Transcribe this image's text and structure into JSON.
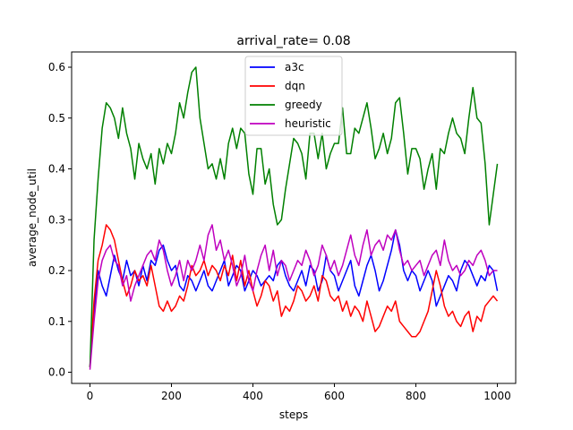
{
  "chart_data": {
    "type": "line",
    "title": "arrival_rate= 0.08",
    "xlabel": "steps",
    "ylabel": "average_node_util",
    "xlim": [
      -45,
      1045
    ],
    "ylim": [
      -0.022,
      0.63
    ],
    "xticks": [
      0,
      200,
      400,
      600,
      800,
      1000
    ],
    "yticks": [
      0.0,
      0.1,
      0.2,
      0.3,
      0.4,
      0.5,
      0.6
    ],
    "grid": false,
    "legend_position": "top-center",
    "x": [
      0,
      10,
      20,
      30,
      40,
      50,
      60,
      70,
      80,
      90,
      100,
      110,
      120,
      130,
      140,
      150,
      160,
      170,
      180,
      190,
      200,
      210,
      220,
      230,
      240,
      250,
      260,
      270,
      280,
      290,
      300,
      310,
      320,
      330,
      340,
      350,
      360,
      370,
      380,
      390,
      400,
      410,
      420,
      430,
      440,
      450,
      460,
      470,
      480,
      490,
      500,
      510,
      520,
      530,
      540,
      550,
      560,
      570,
      580,
      590,
      600,
      610,
      620,
      630,
      640,
      650,
      660,
      670,
      680,
      690,
      700,
      710,
      720,
      730,
      740,
      750,
      760,
      770,
      780,
      790,
      800,
      810,
      820,
      830,
      840,
      850,
      860,
      870,
      880,
      890,
      900,
      910,
      920,
      930,
      940,
      950,
      960,
      970,
      980,
      990,
      1000
    ],
    "series": [
      {
        "name": "a3c",
        "color": "#0000ff",
        "values": [
          0.01,
          0.12,
          0.2,
          0.17,
          0.15,
          0.19,
          0.23,
          0.2,
          0.18,
          0.22,
          0.19,
          0.2,
          0.17,
          0.21,
          0.18,
          0.22,
          0.21,
          0.24,
          0.25,
          0.22,
          0.2,
          0.21,
          0.17,
          0.16,
          0.19,
          0.18,
          0.16,
          0.18,
          0.2,
          0.17,
          0.16,
          0.18,
          0.2,
          0.22,
          0.17,
          0.19,
          0.21,
          0.2,
          0.16,
          0.18,
          0.2,
          0.19,
          0.17,
          0.18,
          0.19,
          0.18,
          0.21,
          0.22,
          0.19,
          0.17,
          0.16,
          0.18,
          0.2,
          0.17,
          0.21,
          0.2,
          0.16,
          0.18,
          0.23,
          0.2,
          0.19,
          0.16,
          0.18,
          0.2,
          0.22,
          0.17,
          0.15,
          0.18,
          0.21,
          0.23,
          0.2,
          0.16,
          0.18,
          0.21,
          0.24,
          0.28,
          0.25,
          0.2,
          0.18,
          0.2,
          0.19,
          0.16,
          0.18,
          0.2,
          0.18,
          0.13,
          0.15,
          0.17,
          0.19,
          0.18,
          0.16,
          0.2,
          0.22,
          0.21,
          0.19,
          0.17,
          0.19,
          0.18,
          0.21,
          0.2,
          0.16
        ]
      },
      {
        "name": "dqn",
        "color": "#ff0000",
        "values": [
          0.01,
          0.14,
          0.22,
          0.25,
          0.29,
          0.28,
          0.26,
          0.22,
          0.18,
          0.15,
          0.17,
          0.2,
          0.18,
          0.19,
          0.17,
          0.21,
          0.17,
          0.13,
          0.12,
          0.14,
          0.12,
          0.13,
          0.15,
          0.14,
          0.17,
          0.21,
          0.19,
          0.2,
          0.22,
          0.19,
          0.21,
          0.2,
          0.18,
          0.21,
          0.19,
          0.23,
          0.18,
          0.22,
          0.17,
          0.2,
          0.16,
          0.13,
          0.15,
          0.18,
          0.17,
          0.14,
          0.16,
          0.11,
          0.13,
          0.12,
          0.14,
          0.17,
          0.16,
          0.14,
          0.15,
          0.17,
          0.14,
          0.19,
          0.18,
          0.15,
          0.14,
          0.15,
          0.12,
          0.14,
          0.11,
          0.13,
          0.12,
          0.1,
          0.14,
          0.11,
          0.08,
          0.09,
          0.11,
          0.13,
          0.12,
          0.14,
          0.1,
          0.09,
          0.08,
          0.07,
          0.07,
          0.08,
          0.1,
          0.12,
          0.16,
          0.2,
          0.17,
          0.13,
          0.11,
          0.12,
          0.1,
          0.09,
          0.11,
          0.12,
          0.08,
          0.11,
          0.1,
          0.13,
          0.14,
          0.15,
          0.14
        ]
      },
      {
        "name": "greedy",
        "color": "#008000",
        "values": [
          0.01,
          0.26,
          0.38,
          0.48,
          0.53,
          0.52,
          0.5,
          0.46,
          0.52,
          0.47,
          0.44,
          0.38,
          0.45,
          0.42,
          0.4,
          0.43,
          0.37,
          0.44,
          0.41,
          0.45,
          0.43,
          0.47,
          0.53,
          0.5,
          0.55,
          0.59,
          0.6,
          0.5,
          0.45,
          0.4,
          0.41,
          0.38,
          0.42,
          0.38,
          0.45,
          0.48,
          0.44,
          0.48,
          0.47,
          0.39,
          0.35,
          0.44,
          0.44,
          0.37,
          0.4,
          0.33,
          0.29,
          0.3,
          0.36,
          0.41,
          0.46,
          0.45,
          0.43,
          0.38,
          0.47,
          0.47,
          0.42,
          0.47,
          0.4,
          0.43,
          0.45,
          0.45,
          0.52,
          0.43,
          0.43,
          0.48,
          0.47,
          0.5,
          0.53,
          0.48,
          0.42,
          0.44,
          0.47,
          0.43,
          0.46,
          0.53,
          0.54,
          0.47,
          0.39,
          0.44,
          0.44,
          0.42,
          0.36,
          0.4,
          0.43,
          0.36,
          0.44,
          0.43,
          0.47,
          0.5,
          0.47,
          0.46,
          0.43,
          0.5,
          0.56,
          0.5,
          0.49,
          0.41,
          0.29,
          0.35,
          0.41
        ]
      },
      {
        "name": "heuristic",
        "color": "#bf00bf",
        "values": [
          0.005,
          0.1,
          0.18,
          0.22,
          0.24,
          0.25,
          0.22,
          0.21,
          0.17,
          0.19,
          0.14,
          0.17,
          0.19,
          0.21,
          0.23,
          0.24,
          0.22,
          0.26,
          0.24,
          0.2,
          0.17,
          0.19,
          0.22,
          0.18,
          0.22,
          0.2,
          0.22,
          0.25,
          0.22,
          0.27,
          0.29,
          0.24,
          0.26,
          0.22,
          0.24,
          0.21,
          0.17,
          0.19,
          0.23,
          0.18,
          0.16,
          0.2,
          0.23,
          0.25,
          0.2,
          0.24,
          0.19,
          0.22,
          0.21,
          0.18,
          0.2,
          0.22,
          0.21,
          0.24,
          0.22,
          0.19,
          0.21,
          0.25,
          0.23,
          0.2,
          0.22,
          0.19,
          0.21,
          0.24,
          0.27,
          0.23,
          0.21,
          0.25,
          0.28,
          0.23,
          0.25,
          0.26,
          0.24,
          0.27,
          0.26,
          0.28,
          0.24,
          0.21,
          0.22,
          0.2,
          0.21,
          0.22,
          0.19,
          0.21,
          0.23,
          0.24,
          0.21,
          0.26,
          0.22,
          0.2,
          0.21,
          0.19,
          0.2,
          0.22,
          0.21,
          0.23,
          0.24,
          0.22,
          0.19,
          0.2,
          0.2
        ]
      }
    ]
  }
}
